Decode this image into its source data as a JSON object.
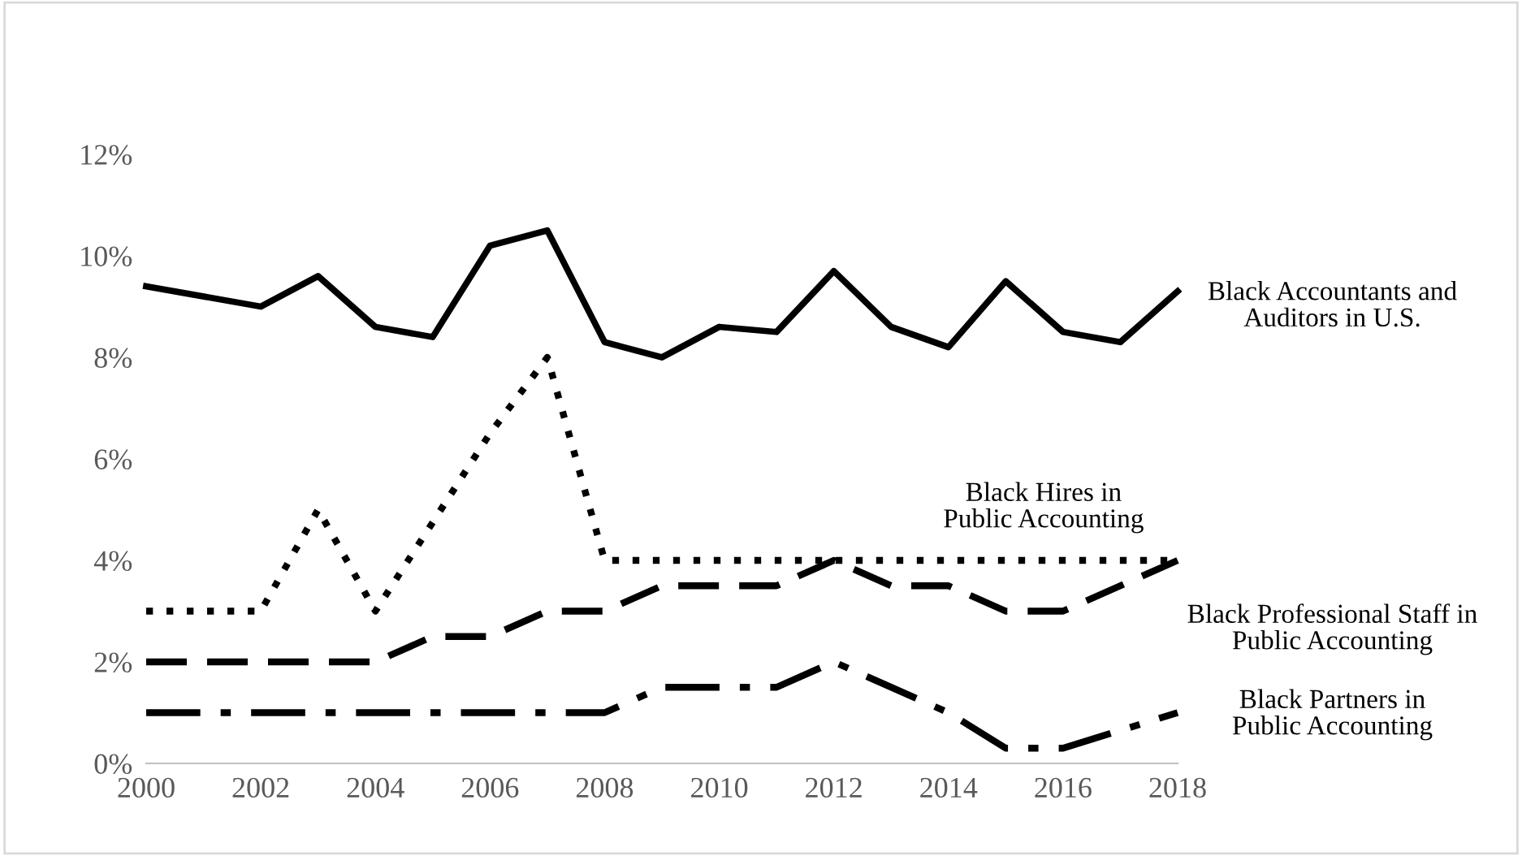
{
  "chart_data": {
    "type": "line",
    "xlim": [
      2000,
      2018
    ],
    "xticks": [
      2000,
      2002,
      2004,
      2006,
      2008,
      2010,
      2012,
      2014,
      2016,
      2018
    ],
    "ylim": [
      0,
      12
    ],
    "yticks": [
      {
        "value": 0,
        "label": "0%"
      },
      {
        "value": 2,
        "label": "2%"
      },
      {
        "value": 4,
        "label": "4%"
      },
      {
        "value": 6,
        "label": "6%"
      },
      {
        "value": 8,
        "label": "8%"
      },
      {
        "value": 10,
        "label": "10%"
      },
      {
        "value": 12,
        "label": "12%"
      }
    ],
    "grid": false,
    "legend": false,
    "series": [
      {
        "name": "Black Accountants and\nAuditors in U.S.",
        "color": "#000000",
        "line_style": "solid",
        "x": [
          2000,
          2002,
          2003,
          2004,
          2005,
          2006,
          2007,
          2008,
          2009,
          2010,
          2011,
          2012,
          2013,
          2014,
          2015,
          2016,
          2017,
          2018
        ],
        "values": [
          9.4,
          9.0,
          9.6,
          8.6,
          8.4,
          10.2,
          10.5,
          8.3,
          8.0,
          8.6,
          8.5,
          9.7,
          8.6,
          8.2,
          9.5,
          8.5,
          8.3,
          9.3
        ]
      },
      {
        "name": "Black Hires in\nPublic Accounting",
        "color": "#000000",
        "line_style": "dotted",
        "x": [
          2000,
          2002,
          2003,
          2004,
          2006,
          2007,
          2008,
          2018
        ],
        "values": [
          3,
          3,
          5,
          3,
          6.5,
          8,
          4,
          4
        ]
      },
      {
        "name": "Black Professional Staff in\nPublic Accounting",
        "color": "#000000",
        "line_style": "dashed",
        "x": [
          2000,
          2004,
          2005,
          2006,
          2007,
          2008,
          2009,
          2011,
          2012,
          2013,
          2014,
          2015,
          2016,
          2018
        ],
        "values": [
          2,
          2,
          2.5,
          2.5,
          3,
          3,
          3.5,
          3.5,
          4,
          3.5,
          3.5,
          3,
          3,
          4
        ]
      },
      {
        "name": "Black Partners in\nPublic Accounting",
        "color": "#000000",
        "line_style": "dashdot",
        "x": [
          2000,
          2008,
          2009,
          2011,
          2012,
          2014,
          2015,
          2016,
          2018
        ],
        "values": [
          1,
          1,
          1.5,
          1.5,
          2,
          1,
          0.3,
          0.3,
          1
        ]
      }
    ]
  }
}
